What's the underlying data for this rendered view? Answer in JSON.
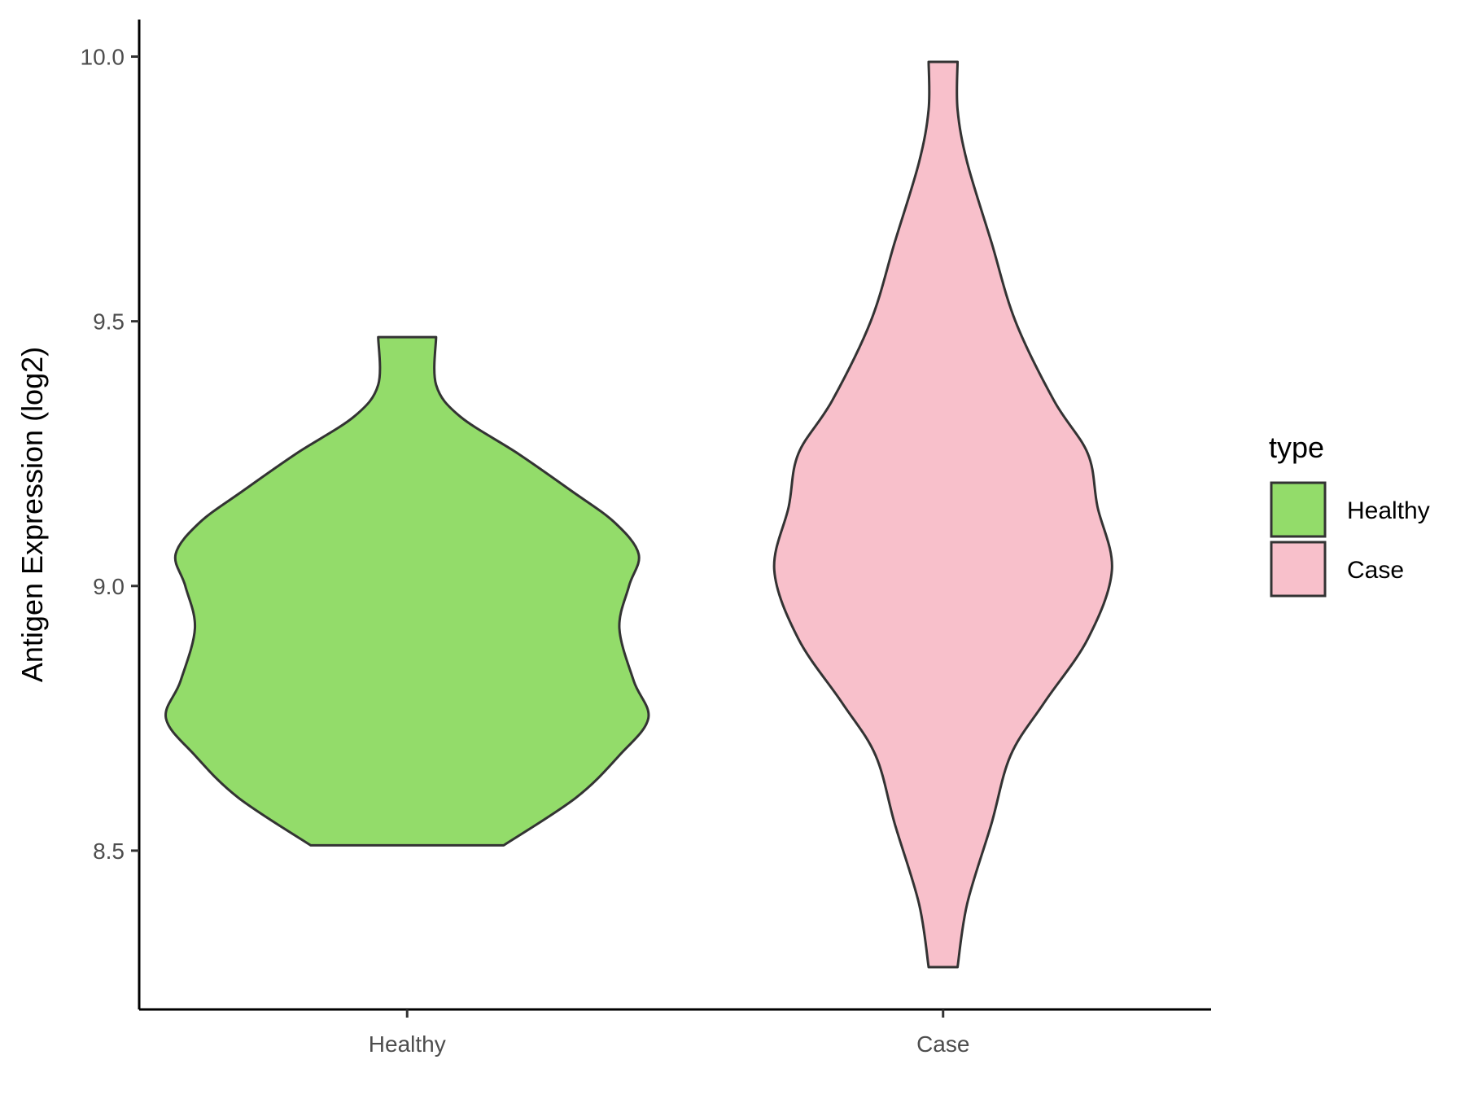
{
  "chart_data": {
    "type": "violin",
    "ylabel": "Antigen Expression (log2)",
    "xlabel": "",
    "ylim": [
      8.2,
      10.07
    ],
    "yticks": [
      "8.5",
      "9.0",
      "9.5",
      "10.0"
    ],
    "ytick_values": [
      8.5,
      9.0,
      9.5,
      10.0
    ],
    "grid": false,
    "categories": [
      "Healthy",
      "Case"
    ],
    "legend": {
      "title": "type",
      "placement": "right",
      "entries": [
        "Healthy",
        "Case"
      ]
    },
    "series": [
      {
        "name": "Healthy",
        "color": "#93dc6a",
        "y_min": 8.51,
        "y_max": 9.47,
        "density_profile": [
          [
            8.51,
            0.2
          ],
          [
            8.6,
            0.35
          ],
          [
            8.68,
            0.44
          ],
          [
            8.75,
            0.5
          ],
          [
            8.82,
            0.47
          ],
          [
            8.92,
            0.44
          ],
          [
            9.0,
            0.46
          ],
          [
            9.06,
            0.48
          ],
          [
            9.12,
            0.43
          ],
          [
            9.18,
            0.34
          ],
          [
            9.25,
            0.23
          ],
          [
            9.32,
            0.11
          ],
          [
            9.38,
            0.06
          ],
          [
            9.47,
            0.06
          ]
        ]
      },
      {
        "name": "Case",
        "color": "#f8c0cb",
        "y_min": 8.28,
        "y_max": 9.99,
        "density_profile": [
          [
            8.28,
            0.03
          ],
          [
            8.4,
            0.05
          ],
          [
            8.55,
            0.1
          ],
          [
            8.68,
            0.14
          ],
          [
            8.78,
            0.21
          ],
          [
            8.9,
            0.3
          ],
          [
            9.03,
            0.35
          ],
          [
            9.15,
            0.32
          ],
          [
            9.25,
            0.3
          ],
          [
            9.35,
            0.23
          ],
          [
            9.5,
            0.15
          ],
          [
            9.65,
            0.1
          ],
          [
            9.8,
            0.05
          ],
          [
            9.9,
            0.03
          ],
          [
            9.99,
            0.03
          ]
        ]
      }
    ],
    "outline_color": "#333333"
  }
}
